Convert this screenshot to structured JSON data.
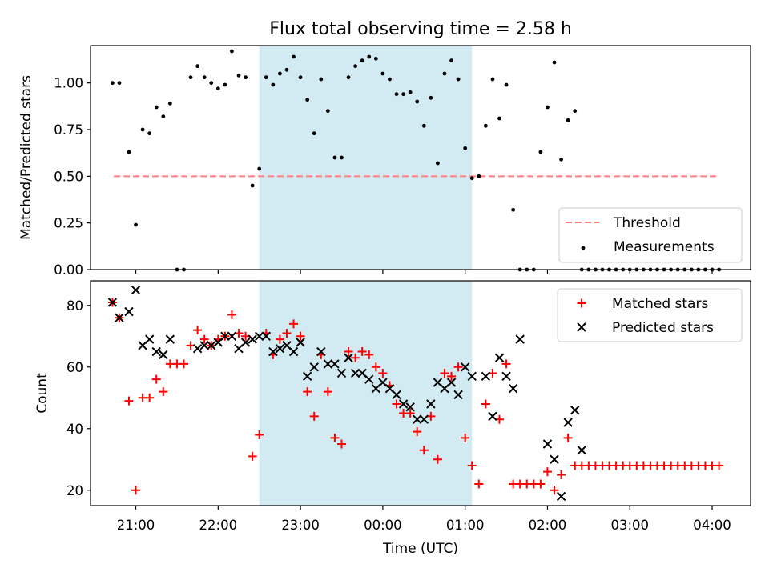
{
  "colors": {
    "band": "#add8e6",
    "threshold": "#ff7f7f",
    "measurement": "#000000",
    "matched": "#ff0000",
    "predicted": "#000000"
  },
  "chart_data": [
    {
      "type": "scatter",
      "title": "Flux total observing time = 2.58 h",
      "xlabel": "",
      "ylabel": "Matched/Predicted stars",
      "xlim": [
        "2023-01-01T20:27",
        "2023-01-02T04:28"
      ],
      "ylim": [
        0.0,
        1.2
      ],
      "yticks": [
        "0.00",
        "0.25",
        "0.50",
        "0.75",
        "1.00"
      ],
      "grid": false,
      "legend_position": "lower-right",
      "shaded_span": [
        "2023-01-01T22:30",
        "2023-01-02T01:05"
      ],
      "threshold": {
        "name": "Threshold",
        "value": 0.5,
        "x": [
          "2023-01-01T20:44",
          "2023-01-02T04:05"
        ]
      },
      "series": [
        {
          "name": "Measurements",
          "x": [
            "2023-01-01T20:43",
            "2023-01-01T20:48",
            "2023-01-01T20:55",
            "2023-01-01T21:00",
            "2023-01-01T21:05",
            "2023-01-01T21:10",
            "2023-01-01T21:15",
            "2023-01-01T21:20",
            "2023-01-01T21:25",
            "2023-01-01T21:30",
            "2023-01-01T21:35",
            "2023-01-01T21:40",
            "2023-01-01T21:45",
            "2023-01-01T21:50",
            "2023-01-01T21:55",
            "2023-01-01T22:00",
            "2023-01-01T22:05",
            "2023-01-01T22:10",
            "2023-01-01T22:15",
            "2023-01-01T22:20",
            "2023-01-01T22:25",
            "2023-01-01T22:30",
            "2023-01-01T22:35",
            "2023-01-01T22:40",
            "2023-01-01T22:45",
            "2023-01-01T22:50",
            "2023-01-01T22:55",
            "2023-01-01T23:00",
            "2023-01-01T23:05",
            "2023-01-01T23:10",
            "2023-01-01T23:15",
            "2023-01-01T23:20",
            "2023-01-01T23:25",
            "2023-01-01T23:30",
            "2023-01-01T23:35",
            "2023-01-01T23:40",
            "2023-01-01T23:45",
            "2023-01-01T23:50",
            "2023-01-01T23:55",
            "2023-01-02T00:00",
            "2023-01-02T00:05",
            "2023-01-02T00:10",
            "2023-01-02T00:15",
            "2023-01-02T00:20",
            "2023-01-02T00:25",
            "2023-01-02T00:30",
            "2023-01-02T00:35",
            "2023-01-02T00:40",
            "2023-01-02T00:45",
            "2023-01-02T00:50",
            "2023-01-02T00:55",
            "2023-01-02T01:00",
            "2023-01-02T01:05",
            "2023-01-02T01:10",
            "2023-01-02T01:15",
            "2023-01-02T01:20",
            "2023-01-02T01:25",
            "2023-01-02T01:30",
            "2023-01-02T01:35",
            "2023-01-02T01:40",
            "2023-01-02T01:45",
            "2023-01-02T01:50",
            "2023-01-02T01:55",
            "2023-01-02T02:00",
            "2023-01-02T02:05",
            "2023-01-02T02:10",
            "2023-01-02T02:15",
            "2023-01-02T02:20",
            "2023-01-02T02:25",
            "2023-01-02T02:30",
            "2023-01-02T02:35",
            "2023-01-02T02:40",
            "2023-01-02T02:45",
            "2023-01-02T02:50",
            "2023-01-02T02:55",
            "2023-01-02T03:00",
            "2023-01-02T03:05",
            "2023-01-02T03:10",
            "2023-01-02T03:15",
            "2023-01-02T03:20",
            "2023-01-02T03:25",
            "2023-01-02T03:30",
            "2023-01-02T03:35",
            "2023-01-02T03:40",
            "2023-01-02T03:45",
            "2023-01-02T03:50",
            "2023-01-02T03:55",
            "2023-01-02T04:00",
            "2023-01-02T04:05"
          ],
          "y": [
            1.0,
            1.0,
            0.63,
            0.24,
            0.75,
            0.73,
            0.87,
            0.82,
            0.89,
            0.0,
            0.0,
            1.03,
            1.09,
            1.03,
            1.0,
            0.97,
            0.99,
            1.17,
            1.04,
            1.03,
            0.45,
            0.54,
            1.03,
            0.99,
            1.05,
            1.07,
            1.14,
            1.03,
            0.91,
            0.73,
            1.02,
            0.85,
            0.6,
            0.6,
            1.03,
            1.09,
            1.12,
            1.14,
            1.13,
            1.05,
            1.02,
            0.94,
            0.94,
            0.95,
            0.9,
            0.77,
            0.92,
            0.57,
            1.05,
            1.12,
            1.02,
            0.65,
            0.49,
            0.5,
            0.77,
            1.02,
            0.81,
            0.99,
            0.32,
            0.0,
            0.0,
            0.0,
            0.63,
            0.87,
            1.11,
            0.59,
            0.8,
            0.85,
            0.0,
            0.0,
            0.0,
            0.0,
            0.0,
            0.0,
            0.0,
            0.0,
            0.0,
            0.0,
            0.0,
            0.0,
            0.0,
            0.0,
            0.0,
            0.0,
            0.0,
            0.0,
            0.0,
            0.0,
            0.0
          ]
        }
      ]
    },
    {
      "type": "scatter",
      "title": "",
      "xlabel": "Time (UTC)",
      "ylabel": "Count",
      "xlim": [
        "2023-01-01T20:27",
        "2023-01-02T04:28"
      ],
      "ylim": [
        15,
        88
      ],
      "yticks": [
        "20",
        "40",
        "60",
        "80"
      ],
      "xticks": [
        "21:00",
        "22:00",
        "23:00",
        "00:00",
        "01:00",
        "02:00",
        "03:00",
        "04:00"
      ],
      "xtick_times": [
        "2023-01-01T21:00",
        "2023-01-01T22:00",
        "2023-01-01T23:00",
        "2023-01-02T00:00",
        "2023-01-02T01:00",
        "2023-01-02T02:00",
        "2023-01-02T03:00",
        "2023-01-02T04:00"
      ],
      "grid": false,
      "legend_position": "upper-right",
      "shaded_span": [
        "2023-01-01T22:30",
        "2023-01-02T01:05"
      ],
      "series": [
        {
          "name": "Matched stars",
          "marker": "+",
          "x": [
            "2023-01-01T20:43",
            "2023-01-01T20:48",
            "2023-01-01T20:55",
            "2023-01-01T21:00",
            "2023-01-01T21:05",
            "2023-01-01T21:10",
            "2023-01-01T21:15",
            "2023-01-01T21:20",
            "2023-01-01T21:25",
            "2023-01-01T21:30",
            "2023-01-01T21:35",
            "2023-01-01T21:40",
            "2023-01-01T21:45",
            "2023-01-01T21:50",
            "2023-01-01T21:55",
            "2023-01-01T22:00",
            "2023-01-01T22:05",
            "2023-01-01T22:10",
            "2023-01-01T22:15",
            "2023-01-01T22:20",
            "2023-01-01T22:25",
            "2023-01-01T22:30",
            "2023-01-01T22:35",
            "2023-01-01T22:40",
            "2023-01-01T22:45",
            "2023-01-01T22:50",
            "2023-01-01T22:55",
            "2023-01-01T23:00",
            "2023-01-01T23:05",
            "2023-01-01T23:10",
            "2023-01-01T23:15",
            "2023-01-01T23:20",
            "2023-01-01T23:25",
            "2023-01-01T23:30",
            "2023-01-01T23:35",
            "2023-01-01T23:40",
            "2023-01-01T23:45",
            "2023-01-01T23:50",
            "2023-01-01T23:55",
            "2023-01-02T00:00",
            "2023-01-02T00:05",
            "2023-01-02T00:10",
            "2023-01-02T00:15",
            "2023-01-02T00:20",
            "2023-01-02T00:25",
            "2023-01-02T00:30",
            "2023-01-02T00:35",
            "2023-01-02T00:40",
            "2023-01-02T00:45",
            "2023-01-02T00:50",
            "2023-01-02T00:55",
            "2023-01-02T01:00",
            "2023-01-02T01:05",
            "2023-01-02T01:10",
            "2023-01-02T01:15",
            "2023-01-02T01:20",
            "2023-01-02T01:25",
            "2023-01-02T01:30",
            "2023-01-02T01:35",
            "2023-01-02T01:40",
            "2023-01-02T01:45",
            "2023-01-02T01:50",
            "2023-01-02T01:55",
            "2023-01-02T02:00",
            "2023-01-02T02:05",
            "2023-01-02T02:10",
            "2023-01-02T02:15",
            "2023-01-02T02:20",
            "2023-01-02T02:25",
            "2023-01-02T02:30",
            "2023-01-02T02:35",
            "2023-01-02T02:40",
            "2023-01-02T02:45",
            "2023-01-02T02:50",
            "2023-01-02T02:55",
            "2023-01-02T03:00",
            "2023-01-02T03:05",
            "2023-01-02T03:10",
            "2023-01-02T03:15",
            "2023-01-02T03:20",
            "2023-01-02T03:25",
            "2023-01-02T03:30",
            "2023-01-02T03:35",
            "2023-01-02T03:40",
            "2023-01-02T03:45",
            "2023-01-02T03:50",
            "2023-01-02T03:55",
            "2023-01-02T04:00",
            "2023-01-02T04:05"
          ],
          "y": [
            81,
            76,
            49,
            20,
            50,
            50,
            56,
            52,
            61,
            61,
            61,
            67,
            72,
            69,
            67,
            69,
            70,
            77,
            71,
            70,
            31,
            38,
            71,
            64,
            69,
            71,
            74,
            70,
            52,
            44,
            64,
            52,
            37,
            35,
            65,
            63,
            65,
            64,
            60,
            58,
            54,
            48,
            45,
            45,
            39,
            33,
            44,
            30,
            58,
            57,
            60,
            37,
            28,
            22,
            48,
            58,
            43,
            61,
            22,
            22,
            22,
            22,
            22,
            26,
            20,
            25,
            37,
            28,
            28,
            28,
            28,
            28,
            28,
            28,
            28,
            28,
            28,
            28,
            28,
            28,
            28,
            28,
            28,
            28,
            28,
            28,
            28,
            28,
            28
          ]
        },
        {
          "name": "Predicted stars",
          "marker": "x",
          "x": [
            "2023-01-01T20:43",
            "2023-01-01T20:48",
            "2023-01-01T20:55",
            "2023-01-01T21:00",
            "2023-01-01T21:05",
            "2023-01-01T21:10",
            "2023-01-01T21:15",
            "2023-01-01T21:20",
            "2023-01-01T21:25",
            "2023-01-01T21:45",
            "2023-01-01T21:50",
            "2023-01-01T21:55",
            "2023-01-01T22:00",
            "2023-01-01T22:05",
            "2023-01-01T22:10",
            "2023-01-01T22:15",
            "2023-01-01T22:20",
            "2023-01-01T22:25",
            "2023-01-01T22:30",
            "2023-01-01T22:35",
            "2023-01-01T22:40",
            "2023-01-01T22:45",
            "2023-01-01T22:50",
            "2023-01-01T22:55",
            "2023-01-01T23:00",
            "2023-01-01T23:05",
            "2023-01-01T23:10",
            "2023-01-01T23:15",
            "2023-01-01T23:20",
            "2023-01-01T23:25",
            "2023-01-01T23:30",
            "2023-01-01T23:35",
            "2023-01-01T23:40",
            "2023-01-01T23:45",
            "2023-01-01T23:50",
            "2023-01-01T23:55",
            "2023-01-02T00:00",
            "2023-01-02T00:05",
            "2023-01-02T00:10",
            "2023-01-02T00:15",
            "2023-01-02T00:20",
            "2023-01-02T00:25",
            "2023-01-02T00:30",
            "2023-01-02T00:35",
            "2023-01-02T00:40",
            "2023-01-02T00:45",
            "2023-01-02T00:50",
            "2023-01-02T00:55",
            "2023-01-02T01:00",
            "2023-01-02T01:05",
            "2023-01-02T01:15",
            "2023-01-02T01:20",
            "2023-01-02T01:25",
            "2023-01-02T01:30",
            "2023-01-02T01:35",
            "2023-01-02T01:40",
            "2023-01-02T02:00",
            "2023-01-02T02:05",
            "2023-01-02T02:10",
            "2023-01-02T02:15",
            "2023-01-02T02:20",
            "2023-01-02T02:25"
          ],
          "y": [
            81,
            76,
            78,
            85,
            67,
            69,
            65,
            64,
            69,
            66,
            67,
            67,
            68,
            70,
            70,
            66,
            68,
            69,
            70,
            70,
            65,
            66,
            67,
            65,
            68,
            57,
            60,
            65,
            61,
            61,
            58,
            63,
            58,
            58,
            56,
            53,
            55,
            53,
            51,
            48,
            47,
            43,
            43,
            48,
            55,
            53,
            55,
            51,
            60,
            57,
            57,
            44,
            63,
            57,
            53,
            69,
            35,
            30,
            18,
            42,
            46,
            33
          ]
        }
      ]
    }
  ]
}
